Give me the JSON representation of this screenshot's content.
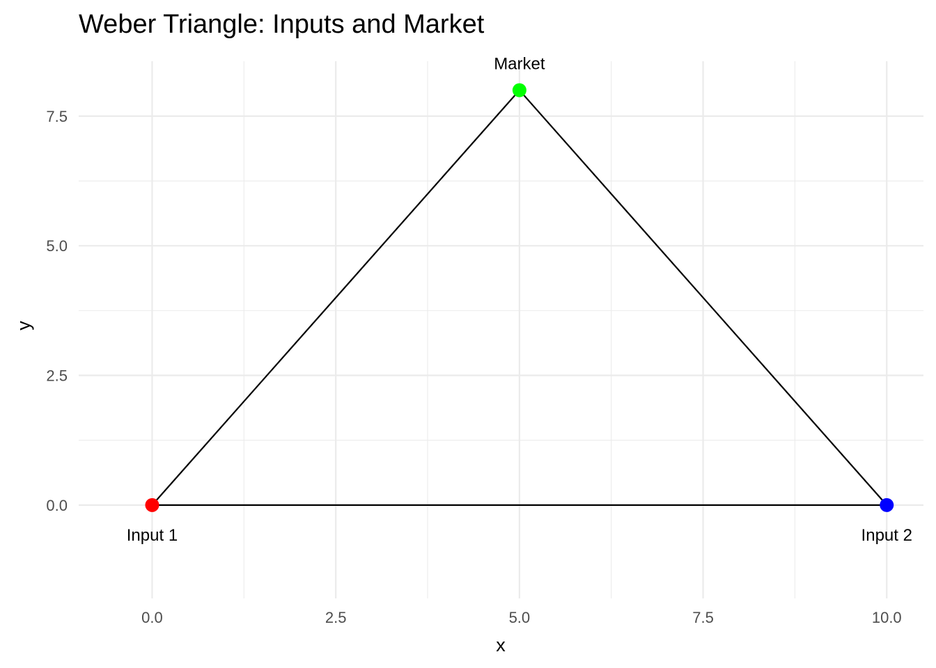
{
  "chart_data": {
    "type": "scatter",
    "title": "Weber Triangle: Inputs and Market",
    "xlabel": "x",
    "ylabel": "y",
    "xlim": [
      -1,
      10.5
    ],
    "ylim": [
      -1.8,
      8.8
    ],
    "x_ticks": [
      0.0,
      2.5,
      5.0,
      7.5,
      10.0
    ],
    "x_tick_labels": [
      "0.0",
      "2.5",
      "5.0",
      "7.5",
      "10.0"
    ],
    "y_ticks": [
      0.0,
      2.5,
      5.0,
      7.5
    ],
    "y_tick_labels": [
      "0.0",
      "2.5",
      "5.0",
      "7.5"
    ],
    "x_minor_ticks": [
      1.25,
      3.75,
      6.25,
      8.75
    ],
    "y_minor_ticks": [
      1.25,
      3.75,
      6.25
    ],
    "grid": true,
    "points": [
      {
        "label": "Input 1",
        "x": 0,
        "y": 0,
        "color": "#ff0000",
        "label_position": "below"
      },
      {
        "label": "Market",
        "x": 5,
        "y": 8,
        "color": "#00ff00",
        "label_position": "above"
      },
      {
        "label": "Input 2",
        "x": 10,
        "y": 0,
        "color": "#0000ff",
        "label_position": "below"
      }
    ],
    "triangle_color": "#000000",
    "grid_color": "#ebebeb"
  }
}
